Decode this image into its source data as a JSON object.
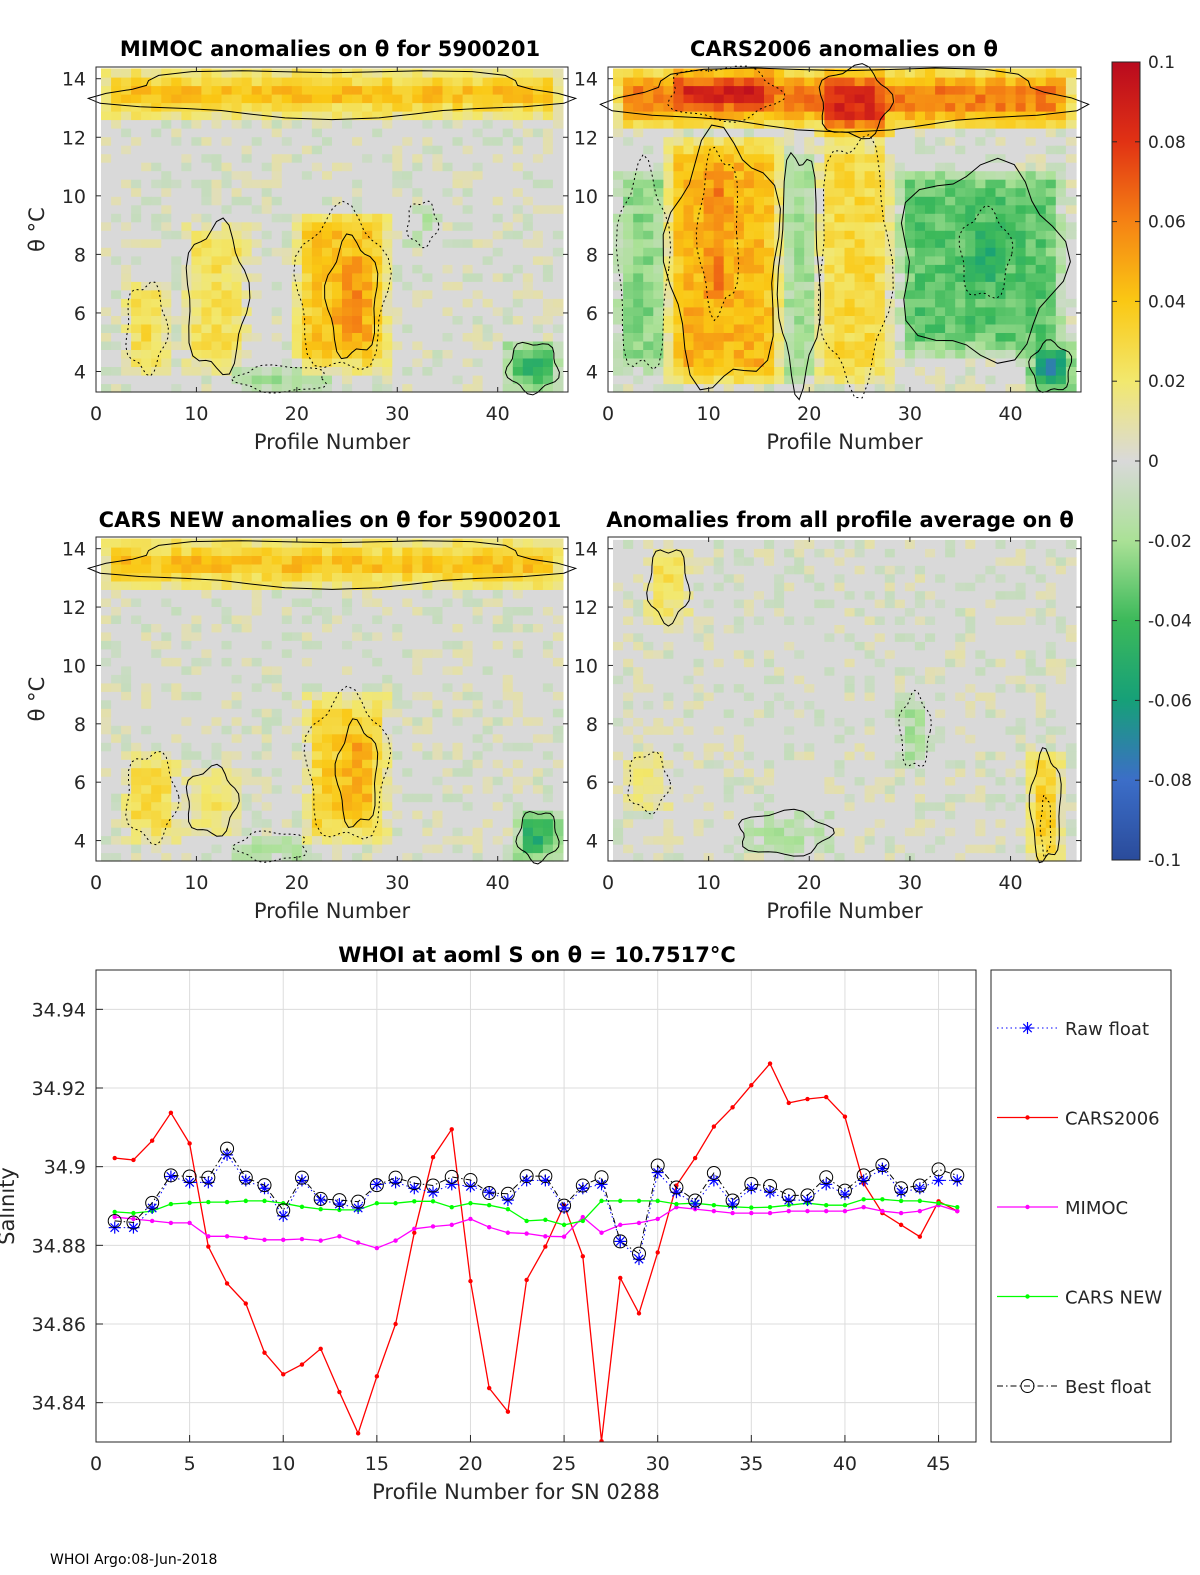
{
  "footer": {
    "text": "WHOI Argo:08-Jun-2018"
  },
  "colors": {
    "axis": "#262626",
    "grid": "#dcdcdc",
    "raw": "#0000ff",
    "cars2006": "#ff0000",
    "mimoc": "#ff00ff",
    "carsnew": "#00ff00",
    "best": "#000000",
    "neutral": "#d9d9d9"
  },
  "chart_data": [
    {
      "id": "mimoc",
      "type": "heatmap",
      "title": "MIMOC anomalies on θ  for 5900201",
      "xlabel": "Profile Number",
      "ylabel": "θ °C",
      "xlim": [
        0,
        47
      ],
      "ylim": [
        3.3,
        14.4
      ],
      "xticks": [
        0,
        10,
        20,
        30,
        40
      ],
      "yticks": [
        4,
        6,
        8,
        10,
        12,
        14
      ],
      "bands": [
        {
          "x": [
            1,
            46
          ],
          "y": [
            12.7,
            14.3
          ],
          "v": 0.045
        },
        {
          "x": [
            3,
            7
          ],
          "y": [
            4.0,
            7.0
          ],
          "v": 0.03
        },
        {
          "x": [
            9,
            15
          ],
          "y": [
            4.0,
            9.0
          ],
          "v": 0.025
        },
        {
          "x": [
            20,
            29
          ],
          "y": [
            4.0,
            9.5
          ],
          "v": 0.04
        },
        {
          "x": [
            23,
            28
          ],
          "y": [
            4.5,
            8.5
          ],
          "v": 0.055
        },
        {
          "x": [
            14,
            23
          ],
          "y": [
            3.3,
            4.2
          ],
          "v": -0.03
        },
        {
          "x": [
            41,
            46
          ],
          "y": [
            3.3,
            5.0
          ],
          "v": -0.045
        },
        {
          "x": [
            31,
            34
          ],
          "y": [
            8.3,
            9.8
          ],
          "v": -0.015
        }
      ]
    },
    {
      "id": "cars2006",
      "type": "heatmap",
      "title": "CARS2006 anomalies on θ",
      "xlabel": "Profile Number",
      "ylabel": "",
      "xlim": [
        0,
        47
      ],
      "ylim": [
        3.3,
        14.4
      ],
      "xticks": [
        0,
        10,
        20,
        30,
        40
      ],
      "yticks": [
        4,
        6,
        8,
        10,
        12,
        14
      ],
      "bands": [
        {
          "x": [
            1,
            46
          ],
          "y": [
            12.3,
            14.4
          ],
          "v": 0.06
        },
        {
          "x": [
            6,
            17
          ],
          "y": [
            12.6,
            14.4
          ],
          "v": 0.09
        },
        {
          "x": [
            21,
            28
          ],
          "y": [
            12.0,
            14.4
          ],
          "v": 0.085
        },
        {
          "x": [
            1,
            6
          ],
          "y": [
            4.0,
            11.0
          ],
          "v": -0.025
        },
        {
          "x": [
            6,
            17
          ],
          "y": [
            3.5,
            12.0
          ],
          "v": 0.045
        },
        {
          "x": [
            9,
            13
          ],
          "y": [
            6.0,
            11.5
          ],
          "v": 0.06
        },
        {
          "x": [
            17,
            21
          ],
          "y": [
            3.5,
            11.5
          ],
          "v": -0.02
        },
        {
          "x": [
            21,
            28
          ],
          "y": [
            3.5,
            12.0
          ],
          "v": 0.03
        },
        {
          "x": [
            29,
            45
          ],
          "y": [
            4.5,
            11.0
          ],
          "v": -0.035
        },
        {
          "x": [
            35,
            40
          ],
          "y": [
            6.5,
            9.5
          ],
          "v": -0.05
        },
        {
          "x": [
            42,
            46
          ],
          "y": [
            3.3,
            5.0
          ],
          "v": -0.07
        }
      ]
    },
    {
      "id": "carsnew",
      "type": "heatmap",
      "title": "CARS NEW anomalies on θ for 5900201",
      "xlabel": "Profile Number",
      "ylabel": "θ °C",
      "xlim": [
        0,
        47
      ],
      "ylim": [
        3.3,
        14.4
      ],
      "xticks": [
        0,
        10,
        20,
        30,
        40
      ],
      "yticks": [
        4,
        6,
        8,
        10,
        12,
        14
      ],
      "bands": [
        {
          "x": [
            1,
            46
          ],
          "y": [
            12.7,
            14.3
          ],
          "v": 0.045
        },
        {
          "x": [
            3,
            8
          ],
          "y": [
            4.0,
            7.0
          ],
          "v": 0.03
        },
        {
          "x": [
            9,
            14
          ],
          "y": [
            4.2,
            6.5
          ],
          "v": 0.02
        },
        {
          "x": [
            21,
            29
          ],
          "y": [
            4.0,
            9.0
          ],
          "v": 0.035
        },
        {
          "x": [
            24,
            28
          ],
          "y": [
            4.5,
            8.0
          ],
          "v": 0.05
        },
        {
          "x": [
            14,
            21
          ],
          "y": [
            3.3,
            4.3
          ],
          "v": -0.025
        },
        {
          "x": [
            42,
            46
          ],
          "y": [
            3.3,
            5.0
          ],
          "v": -0.05
        }
      ]
    },
    {
      "id": "allprof",
      "type": "heatmap",
      "title": "Anomalies from all profile average on θ",
      "xlabel": "Profile Number",
      "ylabel": "",
      "xlim": [
        0,
        47
      ],
      "ylim": [
        3.3,
        14.4
      ],
      "xticks": [
        0,
        10,
        20,
        30,
        40
      ],
      "yticks": [
        4,
        6,
        8,
        10,
        12,
        14
      ],
      "bands": [
        {
          "x": [
            4,
            8
          ],
          "y": [
            11.5,
            14.0
          ],
          "v": 0.025
        },
        {
          "x": [
            2,
            6
          ],
          "y": [
            5.0,
            7.0
          ],
          "v": 0.02
        },
        {
          "x": [
            13,
            22
          ],
          "y": [
            3.5,
            5.0
          ],
          "v": -0.015
        },
        {
          "x": [
            29,
            32
          ],
          "y": [
            6.5,
            9.0
          ],
          "v": -0.02
        },
        {
          "x": [
            42,
            45
          ],
          "y": [
            3.3,
            7.0
          ],
          "v": 0.04
        },
        {
          "x": [
            43,
            44
          ],
          "y": [
            3.5,
            5.5
          ],
          "v": 0.06
        }
      ]
    },
    {
      "id": "colorbar",
      "type": "colorbar",
      "range": [
        -0.1,
        0.1
      ],
      "ticklabels": [
        "0.1",
        "0.08",
        "0.06",
        "0.04",
        "0.02",
        "0",
        "-0.02",
        "-0.04",
        "-0.06",
        "-0.08",
        "-0.1"
      ],
      "tickvalues": [
        0.1,
        0.08,
        0.06,
        0.04,
        0.02,
        0,
        -0.02,
        -0.04,
        -0.06,
        -0.08,
        -0.1
      ]
    },
    {
      "id": "salinity",
      "type": "line",
      "title": "WHOI at aoml S on θ = 10.7517°C",
      "xlabel": "Profile Number for SN 0288",
      "ylabel": "Salinity",
      "xlim": [
        0,
        47
      ],
      "ylim": [
        34.83,
        34.95
      ],
      "xticks": [
        0,
        5,
        10,
        15,
        20,
        25,
        30,
        35,
        40,
        45
      ],
      "yticks": [
        34.84,
        34.86,
        34.88,
        34.9,
        34.92,
        34.94
      ],
      "yticklabels": [
        "34.84",
        "34.86",
        "34.88",
        "34.9",
        "34.92",
        "34.94"
      ],
      "x": [
        1,
        2,
        3,
        4,
        5,
        6,
        7,
        8,
        9,
        10,
        11,
        12,
        13,
        14,
        15,
        16,
        17,
        18,
        19,
        20,
        21,
        22,
        23,
        24,
        25,
        26,
        27,
        28,
        29,
        30,
        31,
        32,
        33,
        34,
        35,
        36,
        37,
        38,
        39,
        40,
        41,
        42,
        43,
        44,
        45,
        46
      ],
      "series": [
        {
          "name": "Raw float",
          "style": "raw",
          "values": [
            34.8845,
            34.8845,
            34.8895,
            34.8975,
            34.896,
            34.896,
            34.903,
            34.8965,
            34.8945,
            34.8875,
            34.8965,
            34.8915,
            34.8905,
            34.8895,
            34.8955,
            34.896,
            34.8945,
            34.8935,
            34.8955,
            34.895,
            34.8935,
            34.8915,
            34.8965,
            34.8965,
            34.8895,
            34.8945,
            34.8955,
            34.881,
            34.8765,
            34.8985,
            34.8935,
            34.8905,
            34.8965,
            34.8905,
            34.8945,
            34.8935,
            34.8915,
            34.8915,
            34.8955,
            34.893,
            34.8965,
            34.8995,
            34.8935,
            34.8945,
            34.8965,
            34.8965
          ]
        },
        {
          "name": "CARS2006",
          "style": "cars2006",
          "values": [
            34.9022,
            34.9017,
            34.9066,
            34.9137,
            34.9059,
            34.8797,
            34.8703,
            34.8652,
            34.8527,
            34.8472,
            34.8497,
            34.8537,
            34.8427,
            34.8322,
            34.8467,
            34.86,
            34.8832,
            34.9024,
            34.9095,
            34.8709,
            34.8437,
            34.8377,
            34.8712,
            34.8797,
            34.8902,
            34.8772,
            34.8302,
            34.8717,
            34.8627,
            34.8782,
            34.8952,
            34.9022,
            34.9102,
            34.9151,
            34.9207,
            34.9262,
            34.9162,
            34.9172,
            34.9177,
            34.9127,
            34.8957,
            34.8882,
            34.8852,
            34.8822,
            34.8912,
            34.8887
          ]
        },
        {
          "name": "MIMOC",
          "style": "mimoc",
          "values": [
            34.8872,
            34.8867,
            34.8862,
            34.8857,
            34.8857,
            34.8823,
            34.8823,
            34.8819,
            34.8814,
            34.8814,
            34.8816,
            34.8812,
            34.8823,
            34.8807,
            34.8793,
            34.8812,
            34.8842,
            34.8848,
            34.8852,
            34.8867,
            34.8846,
            34.8832,
            34.883,
            34.8823,
            34.8822,
            34.8872,
            34.8832,
            34.8852,
            34.8857,
            34.8867,
            34.8897,
            34.8892,
            34.8887,
            34.8882,
            34.8882,
            34.8882,
            34.8887,
            34.8887,
            34.8887,
            34.8887,
            34.8897,
            34.8887,
            34.8882,
            34.8887,
            34.8902,
            34.8887
          ]
        },
        {
          "name": "CARS NEW",
          "style": "carsnew",
          "values": [
            34.8885,
            34.8882,
            34.8887,
            34.8905,
            34.8908,
            34.891,
            34.891,
            34.8913,
            34.8913,
            34.8907,
            34.8898,
            34.8892,
            34.889,
            34.889,
            34.8907,
            34.8907,
            34.8912,
            34.8912,
            34.8897,
            34.8907,
            34.8902,
            34.8892,
            34.8862,
            34.8865,
            34.8852,
            34.8862,
            34.8913,
            34.8913,
            34.8913,
            34.8913,
            34.8905,
            34.8907,
            34.8902,
            34.8898,
            34.8896,
            34.8897,
            34.8902,
            34.8907,
            34.8902,
            34.8902,
            34.8917,
            34.8917,
            34.8913,
            34.8913,
            34.8907,
            34.8897
          ]
        },
        {
          "name": "Best float",
          "style": "best",
          "values": [
            34.8862,
            34.8858,
            34.8908,
            34.8978,
            34.8975,
            34.8972,
            34.9046,
            34.8972,
            34.8953,
            34.8889,
            34.8972,
            34.8918,
            34.8915,
            34.8911,
            34.8953,
            34.8972,
            34.8958,
            34.8952,
            34.8974,
            34.8966,
            34.8933,
            34.8931,
            34.8976,
            34.8976,
            34.8901,
            34.8952,
            34.8973,
            34.881,
            34.8779,
            34.9003,
            34.8947,
            34.8914,
            34.8984,
            34.8914,
            34.8956,
            34.8951,
            34.8927,
            34.8927,
            34.8973,
            34.8939,
            34.8978,
            34.9004,
            34.8945,
            34.8952,
            34.8993,
            34.8978
          ]
        }
      ],
      "legend": {
        "position": "right-outside",
        "entries": [
          "Raw float",
          "CARS2006",
          "MIMOC",
          "CARS NEW",
          "Best float"
        ]
      }
    }
  ]
}
